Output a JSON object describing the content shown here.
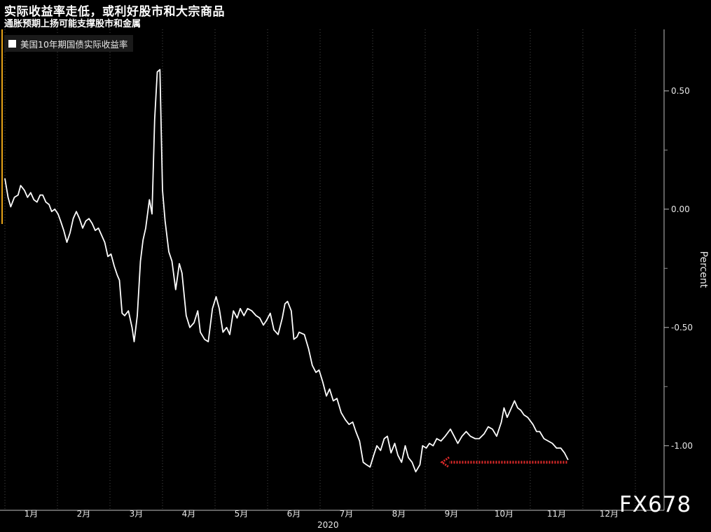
{
  "title": "实际收益率走低，或利好股市和大宗商品",
  "subtitle": "通胀预期上扬可能支撑股市和金属",
  "watermark": "FX678",
  "colors": {
    "background": "#000000",
    "line": "#ffffff",
    "grid": "#4a4a4a",
    "accent": "#e8a317",
    "arrow": "#e02a2a"
  },
  "chart_data": {
    "type": "line",
    "ylabel": "Percent",
    "xlabel": "2020",
    "y_ticks": [
      "0.50",
      "0.00",
      "-0.50",
      "-1.00"
    ],
    "y_tick_values": [
      0.5,
      0.0,
      -0.5,
      -1.0
    ],
    "ylim": [
      -1.27,
      0.76
    ],
    "x_domain": [
      0,
      12.4
    ],
    "months": [
      "1月",
      "2月",
      "3月",
      "4月",
      "5月",
      "6月",
      "7月",
      "8月",
      "9月",
      "10月",
      "11月",
      "12月"
    ],
    "grid": "vertical dotted",
    "legend_position": "top-left",
    "series": [
      {
        "name": "美国10年期国债实际收益率",
        "points": [
          [
            0.0,
            0.13
          ],
          [
            0.06,
            0.05
          ],
          [
            0.11,
            0.01
          ],
          [
            0.18,
            0.05
          ],
          [
            0.25,
            0.06
          ],
          [
            0.3,
            0.1
          ],
          [
            0.37,
            0.08
          ],
          [
            0.43,
            0.05
          ],
          [
            0.49,
            0.07
          ],
          [
            0.55,
            0.04
          ],
          [
            0.61,
            0.03
          ],
          [
            0.67,
            0.06
          ],
          [
            0.72,
            0.06
          ],
          [
            0.78,
            0.03
          ],
          [
            0.84,
            0.02
          ],
          [
            0.89,
            -0.01
          ],
          [
            0.95,
            0.0
          ],
          [
            1.01,
            -0.02
          ],
          [
            1.06,
            -0.05
          ],
          [
            1.12,
            -0.09
          ],
          [
            1.18,
            -0.14
          ],
          [
            1.24,
            -0.1
          ],
          [
            1.3,
            -0.04
          ],
          [
            1.36,
            -0.01
          ],
          [
            1.42,
            -0.04
          ],
          [
            1.48,
            -0.08
          ],
          [
            1.54,
            -0.05
          ],
          [
            1.6,
            -0.04
          ],
          [
            1.66,
            -0.06
          ],
          [
            1.72,
            -0.09
          ],
          [
            1.78,
            -0.08
          ],
          [
            1.84,
            -0.11
          ],
          [
            1.9,
            -0.14
          ],
          [
            1.96,
            -0.2
          ],
          [
            2.02,
            -0.19
          ],
          [
            2.08,
            -0.24
          ],
          [
            2.14,
            -0.28
          ],
          [
            2.18,
            -0.3
          ],
          [
            2.23,
            -0.44
          ],
          [
            2.28,
            -0.45
          ],
          [
            2.35,
            -0.43
          ],
          [
            2.42,
            -0.5
          ],
          [
            2.46,
            -0.56
          ],
          [
            2.52,
            -0.45
          ],
          [
            2.58,
            -0.22
          ],
          [
            2.63,
            -0.13
          ],
          [
            2.68,
            -0.08
          ],
          [
            2.75,
            0.04
          ],
          [
            2.8,
            -0.02
          ],
          [
            2.85,
            0.38
          ],
          [
            2.9,
            0.58
          ],
          [
            2.95,
            0.59
          ],
          [
            3.0,
            0.08
          ],
          [
            3.05,
            -0.05
          ],
          [
            3.12,
            -0.18
          ],
          [
            3.18,
            -0.22
          ],
          [
            3.25,
            -0.34
          ],
          [
            3.32,
            -0.23
          ],
          [
            3.37,
            -0.27
          ],
          [
            3.45,
            -0.45
          ],
          [
            3.52,
            -0.5
          ],
          [
            3.6,
            -0.48
          ],
          [
            3.67,
            -0.43
          ],
          [
            3.72,
            -0.52
          ],
          [
            3.8,
            -0.55
          ],
          [
            3.87,
            -0.56
          ],
          [
            3.95,
            -0.42
          ],
          [
            4.02,
            -0.37
          ],
          [
            4.08,
            -0.42
          ],
          [
            4.15,
            -0.52
          ],
          [
            4.22,
            -0.5
          ],
          [
            4.28,
            -0.53
          ],
          [
            4.35,
            -0.43
          ],
          [
            4.42,
            -0.46
          ],
          [
            4.48,
            -0.42
          ],
          [
            4.55,
            -0.45
          ],
          [
            4.62,
            -0.42
          ],
          [
            4.7,
            -0.43
          ],
          [
            4.78,
            -0.45
          ],
          [
            4.85,
            -0.46
          ],
          [
            4.92,
            -0.49
          ],
          [
            4.98,
            -0.47
          ],
          [
            5.05,
            -0.44
          ],
          [
            5.12,
            -0.51
          ],
          [
            5.2,
            -0.53
          ],
          [
            5.28,
            -0.46
          ],
          [
            5.33,
            -0.4
          ],
          [
            5.38,
            -0.39
          ],
          [
            5.45,
            -0.43
          ],
          [
            5.5,
            -0.55
          ],
          [
            5.56,
            -0.54
          ],
          [
            5.6,
            -0.52
          ],
          [
            5.7,
            -0.53
          ],
          [
            5.78,
            -0.59
          ],
          [
            5.85,
            -0.66
          ],
          [
            5.92,
            -0.69
          ],
          [
            5.98,
            -0.68
          ],
          [
            6.05,
            -0.73
          ],
          [
            6.12,
            -0.79
          ],
          [
            6.18,
            -0.76
          ],
          [
            6.25,
            -0.81
          ],
          [
            6.32,
            -0.8
          ],
          [
            6.4,
            -0.86
          ],
          [
            6.48,
            -0.89
          ],
          [
            6.55,
            -0.91
          ],
          [
            6.62,
            -0.9
          ],
          [
            6.68,
            -0.94
          ],
          [
            6.75,
            -0.98
          ],
          [
            6.82,
            -1.07
          ],
          [
            6.88,
            -1.08
          ],
          [
            6.95,
            -1.09
          ],
          [
            7.02,
            -1.04
          ],
          [
            7.08,
            -1.0
          ],
          [
            7.15,
            -1.02
          ],
          [
            7.22,
            -0.97
          ],
          [
            7.28,
            -0.96
          ],
          [
            7.35,
            -1.03
          ],
          [
            7.42,
            -0.99
          ],
          [
            7.48,
            -1.04
          ],
          [
            7.55,
            -1.07
          ],
          [
            7.62,
            -1.0
          ],
          [
            7.68,
            -1.05
          ],
          [
            7.75,
            -1.07
          ],
          [
            7.82,
            -1.11
          ],
          [
            7.9,
            -1.08
          ],
          [
            7.95,
            -1.0
          ],
          [
            8.02,
            -1.01
          ],
          [
            8.08,
            -0.99
          ],
          [
            8.15,
            -1.0
          ],
          [
            8.22,
            -0.97
          ],
          [
            8.3,
            -0.98
          ],
          [
            8.38,
            -0.96
          ],
          [
            8.48,
            -0.93
          ],
          [
            8.55,
            -0.96
          ],
          [
            8.62,
            -0.99
          ],
          [
            8.7,
            -0.96
          ],
          [
            8.78,
            -0.94
          ],
          [
            8.86,
            -0.96
          ],
          [
            8.95,
            -0.97
          ],
          [
            9.03,
            -0.97
          ],
          [
            9.12,
            -0.95
          ],
          [
            9.2,
            -0.92
          ],
          [
            9.28,
            -0.93
          ],
          [
            9.36,
            -0.96
          ],
          [
            9.45,
            -0.9
          ],
          [
            9.5,
            -0.84
          ],
          [
            9.56,
            -0.88
          ],
          [
            9.62,
            -0.85
          ],
          [
            9.7,
            -0.81
          ],
          [
            9.76,
            -0.84
          ],
          [
            9.82,
            -0.85
          ],
          [
            9.88,
            -0.87
          ],
          [
            9.95,
            -0.88
          ],
          [
            10.05,
            -0.91
          ],
          [
            10.12,
            -0.94
          ],
          [
            10.18,
            -0.94
          ],
          [
            10.26,
            -0.97
          ],
          [
            10.34,
            -0.98
          ],
          [
            10.42,
            -0.99
          ],
          [
            10.5,
            -1.01
          ],
          [
            10.58,
            -1.01
          ],
          [
            10.65,
            -1.03
          ],
          [
            10.72,
            -1.06
          ]
        ]
      }
    ],
    "annotation": {
      "type": "arrow",
      "direction": "left",
      "from_x": 10.7,
      "to_x": 8.32,
      "y": -1.07
    }
  }
}
